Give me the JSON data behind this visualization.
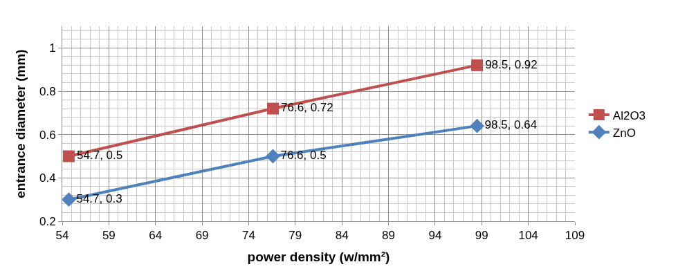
{
  "chart_data": {
    "type": "line",
    "xlabel": "power density (w/mm²)",
    "ylabel": "entrance diameter (mm)",
    "x": [
      54.7,
      76.6,
      98.5
    ],
    "series": [
      {
        "name": "Al2O3",
        "color": "#c0504d",
        "marker": "square",
        "values": [
          0.5,
          0.72,
          0.92
        ],
        "value_labels": [
          "54.7, 0.5",
          "76.6, 0.72",
          "98.5, 0.92"
        ]
      },
      {
        "name": "ZnO",
        "color": "#4f81bd",
        "marker": "diamond",
        "values": [
          0.3,
          0.5,
          0.64
        ],
        "value_labels": [
          "54.7, 0.3",
          "76.6, 0.5",
          "98.5, 0.64"
        ]
      }
    ],
    "xlim": [
      54,
      109
    ],
    "xticks": [
      54,
      59,
      64,
      69,
      74,
      79,
      84,
      89,
      94,
      99,
      104,
      109
    ],
    "ylim": [
      0.2,
      1.1
    ],
    "yticks": [
      0.2,
      0.4,
      0.6,
      0.8,
      1
    ],
    "grid": true,
    "legend": "right",
    "line_style": "solid"
  }
}
